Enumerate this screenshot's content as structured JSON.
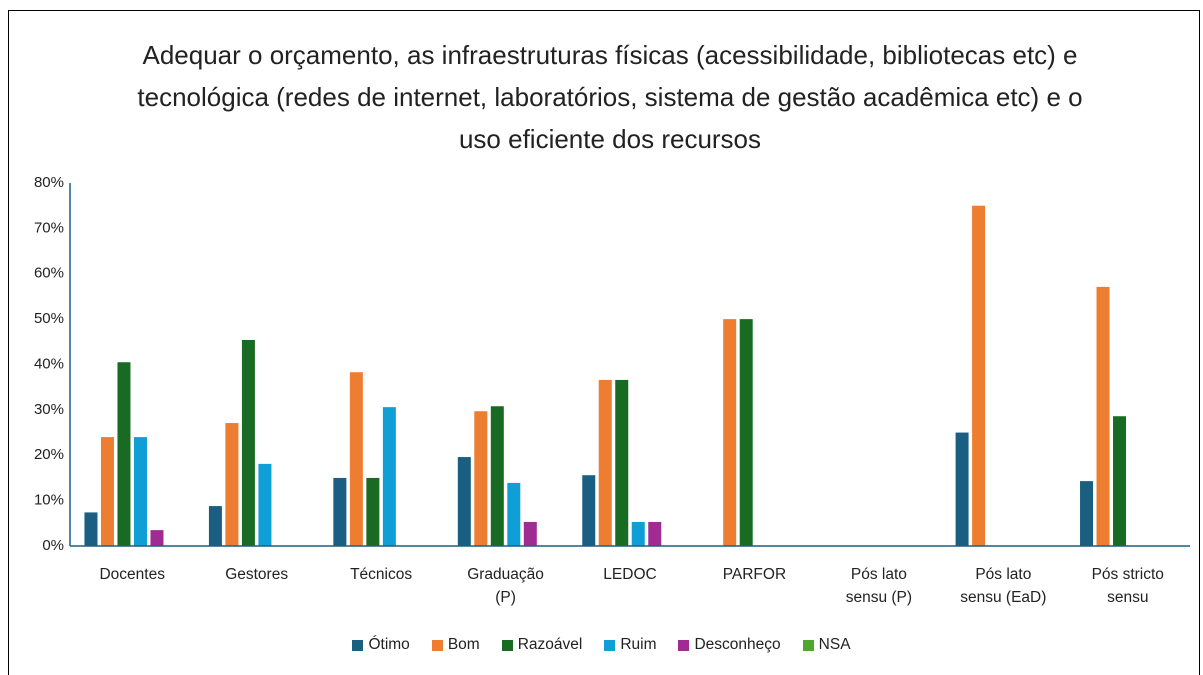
{
  "chart_data": {
    "type": "bar",
    "title": "Adequar o orçamento, as infraestruturas físicas (acessibilidade, bibliotecas etc) e tecnológica (redes de internet, laboratórios, sistema de gestão acadêmica etc) e o uso eficiente dos recursos",
    "categories": [
      "Docentes",
      "Gestores",
      "Técnicos",
      "Graduação (P)",
      "LEDOC",
      "PARFOR",
      "Pós lato sensu (P)",
      "Pós lato sensu (EaD)",
      "Pós stricto sensu"
    ],
    "series": [
      {
        "name": "Ótimo",
        "color": "#1a5f82",
        "values": [
          7.4,
          8.8,
          15.0,
          19.6,
          15.6,
          0,
          0,
          25.0,
          14.3
        ]
      },
      {
        "name": "Bom",
        "color": "#ed7d31",
        "values": [
          24.0,
          27.1,
          38.3,
          29.7,
          36.6,
          50.0,
          0,
          75.0,
          57.1
        ]
      },
      {
        "name": "Razoável",
        "color": "#196b24",
        "values": [
          40.5,
          45.4,
          15.0,
          30.8,
          36.6,
          50.0,
          0,
          0,
          28.6
        ]
      },
      {
        "name": "Ruim",
        "color": "#0f9ed5",
        "values": [
          24.0,
          18.1,
          30.6,
          13.9,
          5.3,
          0,
          0,
          0,
          0
        ]
      },
      {
        "name": "Desconheço",
        "color": "#a02b93",
        "values": [
          3.5,
          0,
          0,
          5.3,
          5.3,
          0,
          0,
          0,
          0
        ]
      },
      {
        "name": "NSA",
        "color": "#4ea72e",
        "values": [
          0,
          0,
          0,
          0,
          0,
          0,
          0,
          0,
          0
        ]
      }
    ],
    "ylim": [
      0,
      80
    ],
    "yticks": [
      {
        "value": 0,
        "label": "0%"
      },
      {
        "value": 10,
        "label": "10%"
      },
      {
        "value": 20,
        "label": "20%"
      },
      {
        "value": 30,
        "label": "30%"
      },
      {
        "value": 40,
        "label": "40%"
      },
      {
        "value": 50,
        "label": "50%"
      },
      {
        "value": 60,
        "label": "60%"
      },
      {
        "value": 70,
        "label": "70%"
      },
      {
        "value": 80,
        "label": "80%"
      }
    ],
    "grid": false,
    "legend": "bottom"
  }
}
